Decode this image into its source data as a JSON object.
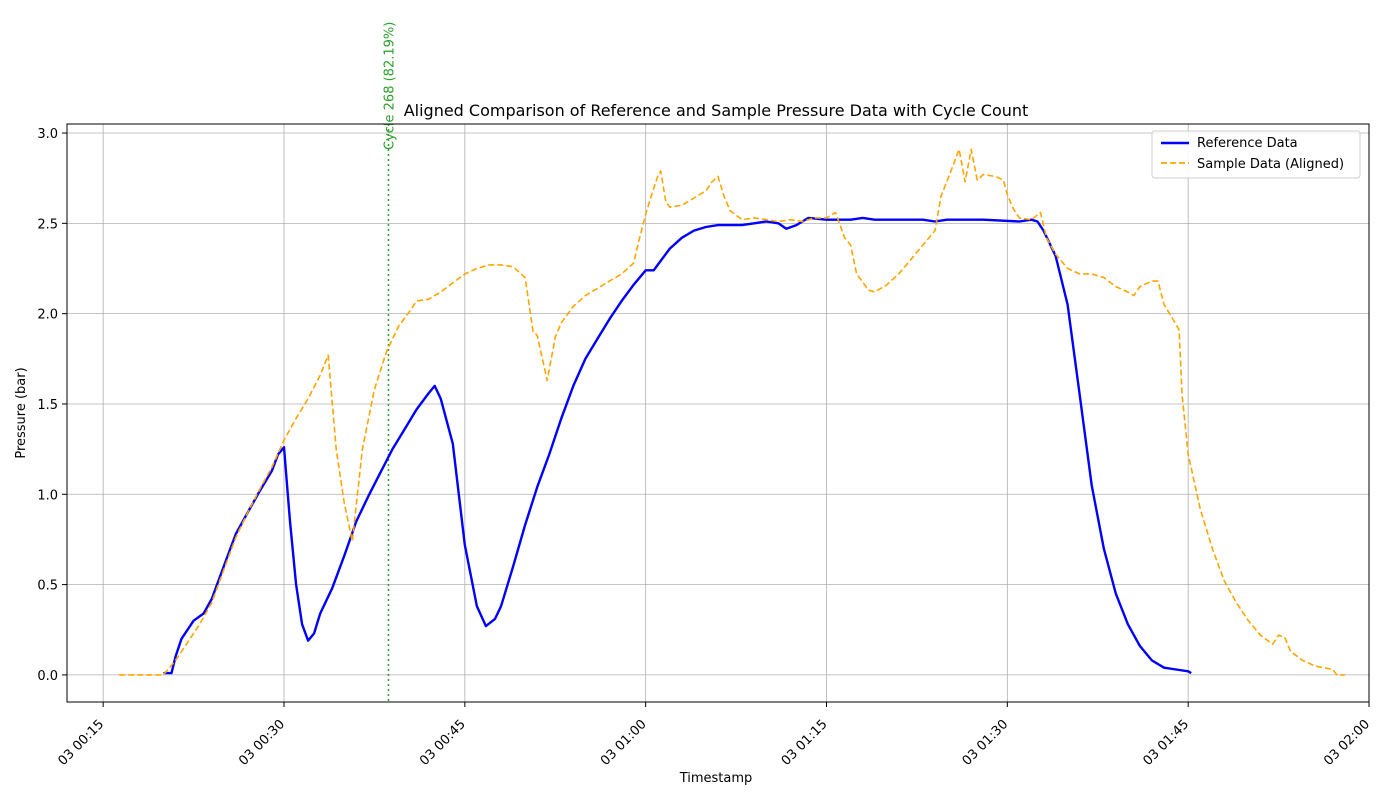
{
  "chart_data": {
    "type": "line",
    "title": "Aligned Comparison of Reference and Sample Pressure Data with Cycle Count",
    "xlabel": "Timestamp",
    "ylabel": "Pressure (bar)",
    "xlim": [
      "03 00:12",
      "03 02:00"
    ],
    "ylim": [
      -0.15,
      3.05
    ],
    "grid": true,
    "legend_position": "top-right",
    "x_ticks": [
      {
        "t": "03 00:15",
        "label": "03 00:15"
      },
      {
        "t": "03 00:30",
        "label": "03 00:30"
      },
      {
        "t": "03 00:45",
        "label": "03 00:45"
      },
      {
        "t": "03 01:00",
        "label": "03 01:00"
      },
      {
        "t": "03 01:15",
        "label": "03 01:15"
      },
      {
        "t": "03 01:30",
        "label": "03 01:30"
      },
      {
        "t": "03 01:45",
        "label": "03 01:45"
      },
      {
        "t": "03 02:00",
        "label": "03 02:00"
      }
    ],
    "y_ticks": [
      {
        "v": 0.0,
        "label": "0.0"
      },
      {
        "v": 0.5,
        "label": "0.5"
      },
      {
        "v": 1.0,
        "label": "1.0"
      },
      {
        "v": 1.5,
        "label": "1.5"
      },
      {
        "v": 2.0,
        "label": "2.0"
      },
      {
        "v": 2.5,
        "label": "2.5"
      },
      {
        "v": 3.0,
        "label": "3.0"
      }
    ],
    "series": [
      {
        "name": "Reference Data",
        "color": "#0000ff",
        "style": "solid",
        "points": [
          [
            "03 00:20",
            0.01
          ],
          [
            "03 00:20:40",
            0.01
          ],
          [
            "03 00:21",
            0.1
          ],
          [
            "03 00:21:30",
            0.2
          ],
          [
            "03 00:22:30",
            0.3
          ],
          [
            "03 00:23:20",
            0.34
          ],
          [
            "03 00:24",
            0.42
          ],
          [
            "03 00:25",
            0.6
          ],
          [
            "03 00:26",
            0.78
          ],
          [
            "03 00:27",
            0.9
          ],
          [
            "03 00:28",
            1.02
          ],
          [
            "03 00:29",
            1.13
          ],
          [
            "03 00:29:30",
            1.22
          ],
          [
            "03 00:30",
            1.26
          ],
          [
            "03 00:30:30",
            0.85
          ],
          [
            "03 00:31",
            0.5
          ],
          [
            "03 00:31:30",
            0.28
          ],
          [
            "03 00:32",
            0.19
          ],
          [
            "03 00:32:30",
            0.23
          ],
          [
            "03 00:33",
            0.34
          ],
          [
            "03 00:34",
            0.48
          ],
          [
            "03 00:35",
            0.66
          ],
          [
            "03 00:36",
            0.85
          ],
          [
            "03 00:37",
            0.99
          ],
          [
            "03 00:38",
            1.12
          ],
          [
            "03 00:39",
            1.25
          ],
          [
            "03 00:40",
            1.36
          ],
          [
            "03 00:41",
            1.47
          ],
          [
            "03 00:42",
            1.56
          ],
          [
            "03 00:42:30",
            1.6
          ],
          [
            "03 00:43",
            1.53
          ],
          [
            "03 00:44",
            1.28
          ],
          [
            "03 00:45",
            0.72
          ],
          [
            "03 00:46",
            0.38
          ],
          [
            "03 00:46:45",
            0.27
          ],
          [
            "03 00:47:30",
            0.31
          ],
          [
            "03 00:48",
            0.38
          ],
          [
            "03 00:49",
            0.6
          ],
          [
            "03 00:50",
            0.83
          ],
          [
            "03 00:51",
            1.04
          ],
          [
            "03 00:52",
            1.22
          ],
          [
            "03 00:53",
            1.42
          ],
          [
            "03 00:54",
            1.6
          ],
          [
            "03 00:55",
            1.75
          ],
          [
            "03 00:56",
            1.86
          ],
          [
            "03 00:57",
            1.97
          ],
          [
            "03 00:58",
            2.07
          ],
          [
            "03 00:59",
            2.16
          ],
          [
            "03 01:00",
            2.24
          ],
          [
            "03 01:00:40",
            2.24
          ],
          [
            "03 01:01",
            2.27
          ],
          [
            "03 01:02",
            2.36
          ],
          [
            "03 01:03",
            2.42
          ],
          [
            "03 01:04",
            2.46
          ],
          [
            "03 01:05",
            2.48
          ],
          [
            "03 01:06",
            2.49
          ],
          [
            "03 01:08",
            2.49
          ],
          [
            "03 01:10",
            2.51
          ],
          [
            "03 01:11",
            2.5
          ],
          [
            "03 01:11:40",
            2.47
          ],
          [
            "03 01:12:30",
            2.49
          ],
          [
            "03 01:13:30",
            2.53
          ],
          [
            "03 01:15",
            2.52
          ],
          [
            "03 01:17",
            2.52
          ],
          [
            "03 01:18",
            2.53
          ],
          [
            "03 01:19",
            2.52
          ],
          [
            "03 01:23",
            2.52
          ],
          [
            "03 01:24",
            2.51
          ],
          [
            "03 01:25",
            2.52
          ],
          [
            "03 01:28",
            2.52
          ],
          [
            "03 01:31",
            2.51
          ],
          [
            "03 01:32",
            2.52
          ],
          [
            "03 01:32:30",
            2.51
          ],
          [
            "03 01:33",
            2.46
          ],
          [
            "03 01:34",
            2.32
          ],
          [
            "03 01:35",
            2.05
          ],
          [
            "03 01:36",
            1.55
          ],
          [
            "03 01:37",
            1.05
          ],
          [
            "03 01:38",
            0.7
          ],
          [
            "03 01:39",
            0.45
          ],
          [
            "03 01:40",
            0.28
          ],
          [
            "03 01:41",
            0.16
          ],
          [
            "03 01:42",
            0.08
          ],
          [
            "03 01:43",
            0.04
          ],
          [
            "03 01:44",
            0.03
          ],
          [
            "03 01:45",
            0.02
          ],
          [
            "03 01:45:15",
            0.01
          ]
        ]
      },
      {
        "name": "Sample Data (Aligned)",
        "color": "#ffa500",
        "style": "dashed",
        "points": [
          [
            "03 00:16:20",
            0.0
          ],
          [
            "03 00:20",
            0.0
          ],
          [
            "03 00:21",
            0.08
          ],
          [
            "03 00:22",
            0.18
          ],
          [
            "03 00:23",
            0.28
          ],
          [
            "03 00:24",
            0.4
          ],
          [
            "03 00:25",
            0.58
          ],
          [
            "03 00:26",
            0.76
          ],
          [
            "03 00:27",
            0.9
          ],
          [
            "03 00:28",
            1.03
          ],
          [
            "03 00:29",
            1.15
          ],
          [
            "03 00:30",
            1.3
          ],
          [
            "03 00:31",
            1.42
          ],
          [
            "03 00:32",
            1.53
          ],
          [
            "03 00:33",
            1.66
          ],
          [
            "03 00:33:40",
            1.77
          ],
          [
            "03 00:34:20",
            1.25
          ],
          [
            "03 00:35",
            0.95
          ],
          [
            "03 00:35:40",
            0.74
          ],
          [
            "03 00:36:30",
            1.25
          ],
          [
            "03 00:37:30",
            1.58
          ],
          [
            "03 00:38:30",
            1.79
          ],
          [
            "03 00:39:30",
            1.93
          ],
          [
            "03 00:40:30",
            2.02
          ],
          [
            "03 00:41",
            2.07
          ],
          [
            "03 00:42",
            2.08
          ],
          [
            "03 00:43",
            2.12
          ],
          [
            "03 00:44",
            2.17
          ],
          [
            "03 00:45",
            2.22
          ],
          [
            "03 00:46",
            2.25
          ],
          [
            "03 00:47",
            2.27
          ],
          [
            "03 00:48",
            2.27
          ],
          [
            "03 00:49",
            2.26
          ],
          [
            "03 00:50",
            2.2
          ],
          [
            "03 00:50:40",
            1.9
          ],
          [
            "03 00:51",
            1.88
          ],
          [
            "03 00:51:50",
            1.63
          ],
          [
            "03 00:52:30",
            1.87
          ],
          [
            "03 00:53",
            1.95
          ],
          [
            "03 00:54",
            2.04
          ],
          [
            "03 00:55",
            2.1
          ],
          [
            "03 00:56",
            2.14
          ],
          [
            "03 00:57",
            2.18
          ],
          [
            "03 00:58",
            2.22
          ],
          [
            "03 00:59",
            2.28
          ],
          [
            "03 00:59:30",
            2.42
          ],
          [
            "03 01:00",
            2.55
          ],
          [
            "03 01:00:30",
            2.66
          ],
          [
            "03 01:01",
            2.76
          ],
          [
            "03 01:01:15",
            2.79
          ],
          [
            "03 01:01:40",
            2.62
          ],
          [
            "03 01:02",
            2.59
          ],
          [
            "03 01:03",
            2.6
          ],
          [
            "03 01:04",
            2.64
          ],
          [
            "03 01:05",
            2.68
          ],
          [
            "03 01:05:30",
            2.73
          ],
          [
            "03 01:06",
            2.76
          ],
          [
            "03 01:06:30",
            2.65
          ],
          [
            "03 01:07",
            2.57
          ],
          [
            "03 01:08",
            2.52
          ],
          [
            "03 01:09",
            2.53
          ],
          [
            "03 01:10",
            2.52
          ],
          [
            "03 01:11",
            2.51
          ],
          [
            "03 01:12",
            2.52
          ],
          [
            "03 01:13",
            2.51
          ],
          [
            "03 01:14",
            2.53
          ],
          [
            "03 01:15",
            2.53
          ],
          [
            "03 01:15:45",
            2.56
          ],
          [
            "03 01:16:30",
            2.42
          ],
          [
            "03 01:17",
            2.38
          ],
          [
            "03 01:17:30",
            2.22
          ],
          [
            "03 01:18:30",
            2.13
          ],
          [
            "03 01:19",
            2.12
          ],
          [
            "03 01:20",
            2.16
          ],
          [
            "03 01:21",
            2.22
          ],
          [
            "03 01:22",
            2.3
          ],
          [
            "03 01:23",
            2.38
          ],
          [
            "03 01:24",
            2.46
          ],
          [
            "03 01:24:30",
            2.65
          ],
          [
            "03 01:25:30",
            2.82
          ],
          [
            "03 01:26",
            2.91
          ],
          [
            "03 01:26:30",
            2.73
          ],
          [
            "03 01:27",
            2.91
          ],
          [
            "03 01:27:30",
            2.74
          ],
          [
            "03 01:28",
            2.77
          ],
          [
            "03 01:29",
            2.76
          ],
          [
            "03 01:29:40",
            2.74
          ],
          [
            "03 01:30",
            2.66
          ],
          [
            "03 01:30:30",
            2.58
          ],
          [
            "03 01:31",
            2.53
          ],
          [
            "03 01:32",
            2.52
          ],
          [
            "03 01:32:45",
            2.56
          ],
          [
            "03 01:33:15",
            2.42
          ],
          [
            "03 01:34",
            2.33
          ],
          [
            "03 01:35",
            2.25
          ],
          [
            "03 01:36",
            2.22
          ],
          [
            "03 01:37",
            2.22
          ],
          [
            "03 01:38",
            2.2
          ],
          [
            "03 01:39",
            2.15
          ],
          [
            "03 01:40",
            2.12
          ],
          [
            "03 01:40:30",
            2.1
          ],
          [
            "03 01:41",
            2.15
          ],
          [
            "03 01:42",
            2.18
          ],
          [
            "03 01:42:30",
            2.18
          ],
          [
            "03 01:43",
            2.05
          ],
          [
            "03 01:44",
            1.94
          ],
          [
            "03 01:44:15",
            1.91
          ],
          [
            "03 01:44:30",
            1.55
          ],
          [
            "03 01:45",
            1.22
          ],
          [
            "03 01:46",
            0.92
          ],
          [
            "03 01:47",
            0.7
          ],
          [
            "03 01:48",
            0.52
          ],
          [
            "03 01:49",
            0.4
          ],
          [
            "03 01:50",
            0.3
          ],
          [
            "03 01:51",
            0.22
          ],
          [
            "03 01:52",
            0.17
          ],
          [
            "03 01:52:30",
            0.22
          ],
          [
            "03 01:53",
            0.21
          ],
          [
            "03 01:53:30",
            0.13
          ],
          [
            "03 01:54:30",
            0.08
          ],
          [
            "03 01:55:30",
            0.05
          ],
          [
            "03 01:57",
            0.03
          ],
          [
            "03 01:57:20",
            0.0
          ],
          [
            "03 01:58",
            0.0
          ]
        ]
      }
    ],
    "annotations": [
      {
        "type": "vline",
        "t": "03 00:38:40",
        "color": "#2ca02c",
        "style": "dotted",
        "label": "Cycle 268 (82.19%)"
      }
    ]
  }
}
